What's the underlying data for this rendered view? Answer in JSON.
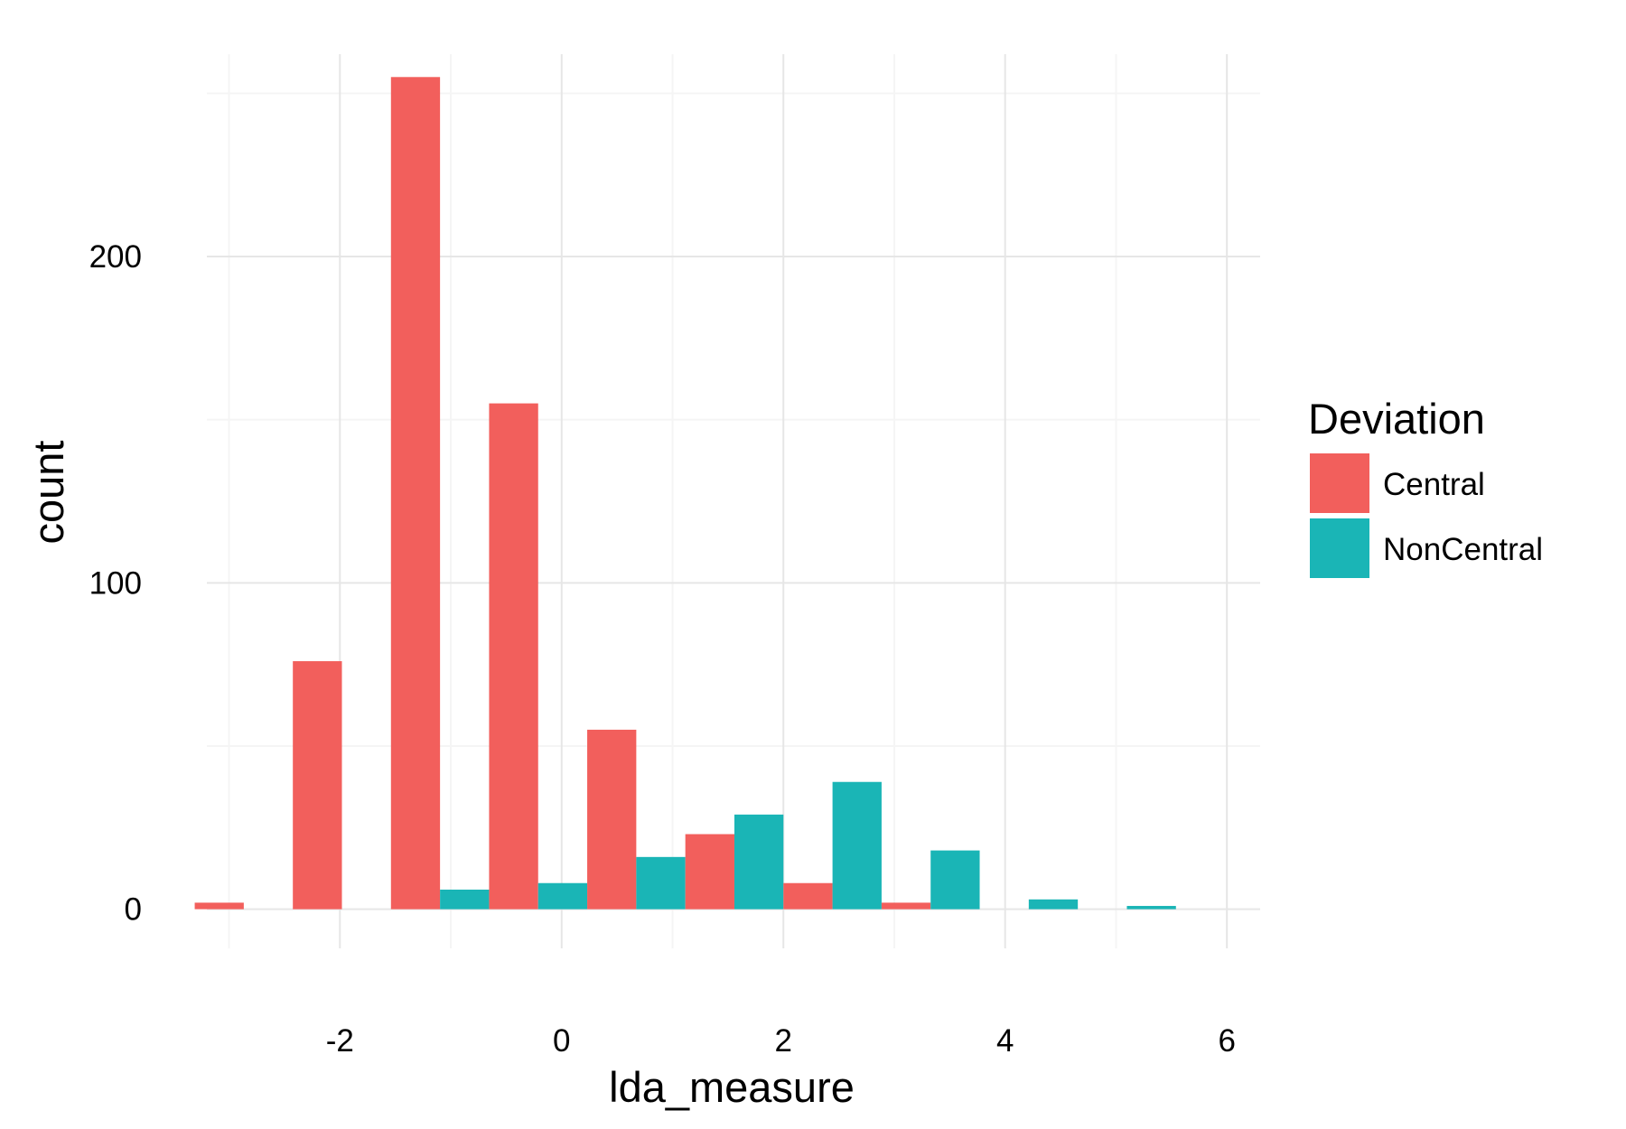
{
  "chart_data": {
    "type": "bar",
    "xlabel": "lda_measure",
    "ylabel": "count",
    "xlim": [
      -3.2,
      6.3
    ],
    "ylim": [
      -12,
      262
    ],
    "x_ticks": [
      -2,
      0,
      2,
      4,
      6
    ],
    "y_ticks": [
      0,
      100,
      200
    ],
    "bin_width": 0.885,
    "bin_centers": [
      -2.867,
      -1.982,
      -1.097,
      -0.212,
      0.673,
      1.558,
      2.443,
      3.328,
      4.213,
      5.098
    ],
    "grid": true,
    "legend": {
      "title": "Deviation",
      "position": "right"
    },
    "series": [
      {
        "name": "Central",
        "color": "#F25F5C",
        "values": [
          2,
          76,
          255,
          155,
          55,
          23,
          8,
          2,
          0,
          0
        ]
      },
      {
        "name": "NonCentral",
        "color": "#1AB5B6",
        "values": [
          0,
          0,
          6,
          8,
          16,
          29,
          39,
          18,
          3,
          1
        ]
      }
    ]
  }
}
